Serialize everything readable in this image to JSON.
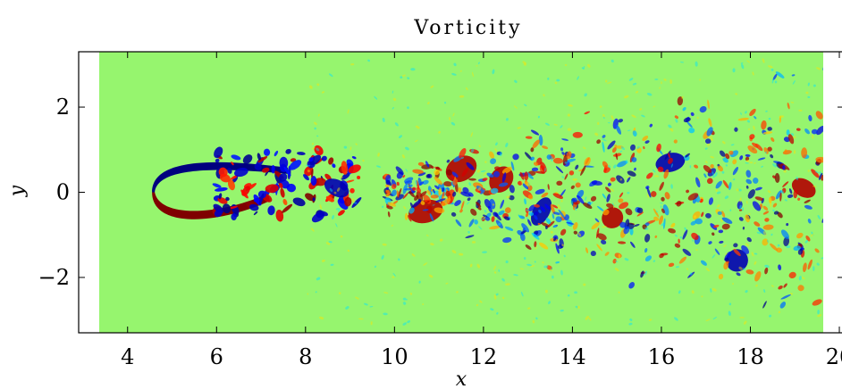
{
  "chart_data": {
    "type": "heatmap",
    "title": "Vorticity",
    "xlabel": "x",
    "ylabel": "y",
    "xlim": [
      2.9,
      20.1
    ],
    "ylim": [
      -3.3,
      3.3
    ],
    "x_ticks": [
      4,
      6,
      8,
      10,
      12,
      14,
      16,
      18,
      20
    ],
    "y_ticks": [
      2,
      0,
      -2
    ],
    "x_tick_labels": [
      "4",
      "6",
      "8",
      "10",
      "12",
      "14",
      "16",
      "18",
      "20"
    ],
    "y_tick_labels": [
      "2",
      "0",
      "−2"
    ],
    "colormap": "jet",
    "background_color": "#96f56e",
    "grid": false,
    "legend": "none",
    "features": {
      "body_leading_edge_x": 4.55,
      "body_trailing_edge_x": 7.6,
      "body_half_height_y": 0.62,
      "near_wake_end_x": 9.2,
      "wake_end_x": 20.1,
      "wake_max_half_width_y": 3.3
    }
  }
}
